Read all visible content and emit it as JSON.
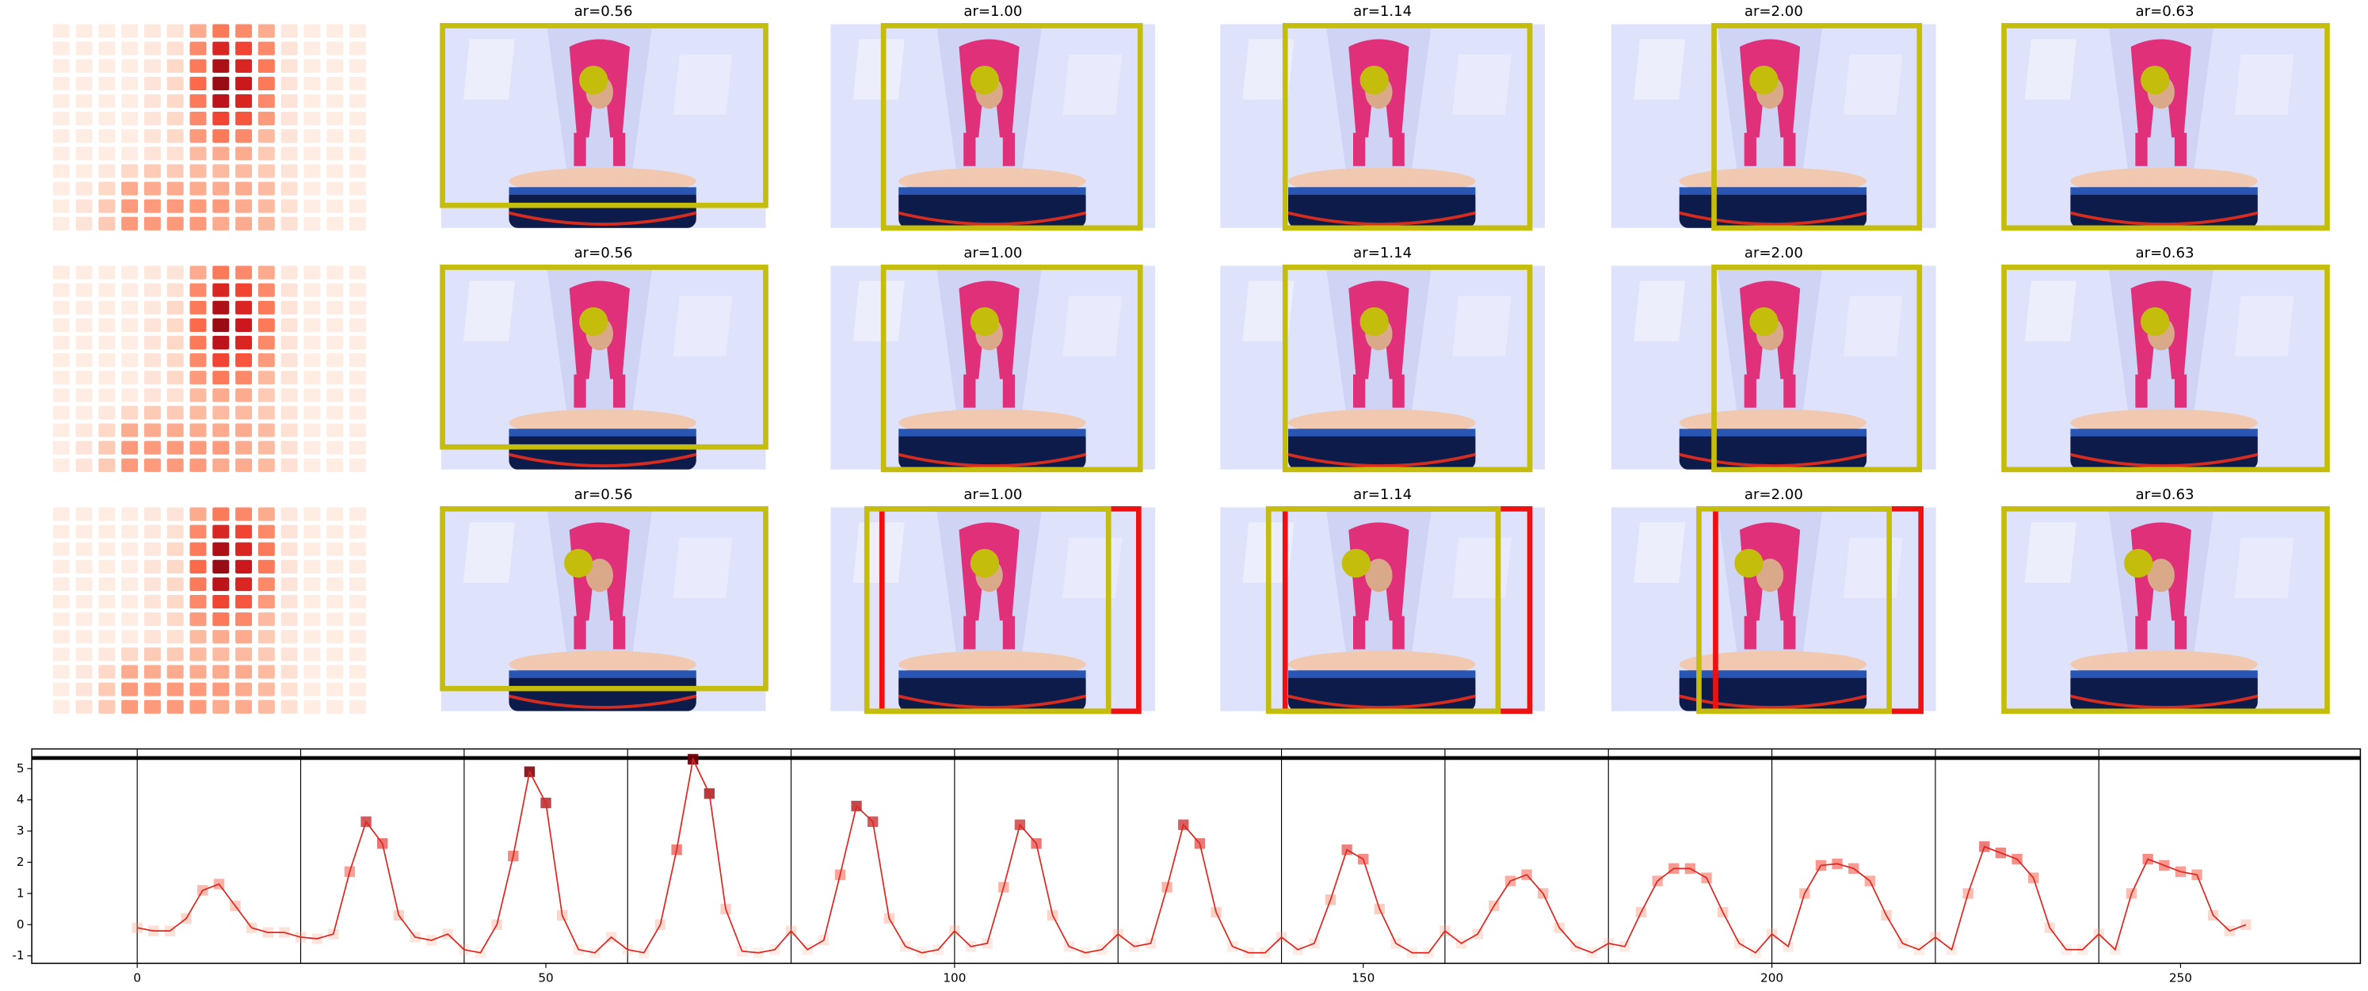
{
  "panel_titles": [
    "ar=0.56",
    "ar=1.00",
    "ar=1.14",
    "ar=2.00",
    "ar=0.63"
  ],
  "heatmap": {
    "values": [
      [
        0.05,
        0.05,
        0.05,
        0.05,
        0.08,
        0.1,
        0.3,
        0.45,
        0.4,
        0.3,
        0.08,
        0.05,
        0.05,
        0.05
      ],
      [
        0.05,
        0.05,
        0.05,
        0.05,
        0.08,
        0.12,
        0.4,
        0.7,
        0.6,
        0.4,
        0.1,
        0.05,
        0.05,
        0.05
      ],
      [
        0.05,
        0.05,
        0.05,
        0.05,
        0.08,
        0.15,
        0.45,
        0.85,
        0.7,
        0.45,
        0.1,
        0.05,
        0.05,
        0.05
      ],
      [
        0.05,
        0.05,
        0.05,
        0.05,
        0.1,
        0.15,
        0.5,
        0.9,
        0.75,
        0.45,
        0.1,
        0.05,
        0.05,
        0.05
      ],
      [
        0.05,
        0.05,
        0.05,
        0.05,
        0.1,
        0.15,
        0.45,
        0.8,
        0.7,
        0.4,
        0.1,
        0.05,
        0.05,
        0.05
      ],
      [
        0.05,
        0.05,
        0.05,
        0.05,
        0.1,
        0.15,
        0.4,
        0.6,
        0.55,
        0.35,
        0.1,
        0.05,
        0.05,
        0.05
      ],
      [
        0.05,
        0.05,
        0.05,
        0.05,
        0.1,
        0.15,
        0.35,
        0.45,
        0.4,
        0.25,
        0.1,
        0.05,
        0.05,
        0.05
      ],
      [
        0.05,
        0.05,
        0.05,
        0.05,
        0.1,
        0.12,
        0.25,
        0.3,
        0.3,
        0.2,
        0.08,
        0.05,
        0.05,
        0.05
      ],
      [
        0.05,
        0.05,
        0.08,
        0.15,
        0.2,
        0.2,
        0.25,
        0.25,
        0.25,
        0.2,
        0.1,
        0.05,
        0.05,
        0.05
      ],
      [
        0.05,
        0.08,
        0.15,
        0.3,
        0.3,
        0.3,
        0.3,
        0.3,
        0.3,
        0.25,
        0.12,
        0.05,
        0.05,
        0.05
      ],
      [
        0.05,
        0.1,
        0.2,
        0.35,
        0.35,
        0.35,
        0.35,
        0.35,
        0.3,
        0.25,
        0.12,
        0.05,
        0.05,
        0.05
      ],
      [
        0.05,
        0.1,
        0.2,
        0.35,
        0.35,
        0.35,
        0.35,
        0.3,
        0.3,
        0.25,
        0.12,
        0.05,
        0.05,
        0.05
      ]
    ]
  },
  "chart_data": {
    "type": "line",
    "x": [
      0,
      2,
      4,
      6,
      8,
      10,
      12,
      14,
      16,
      18,
      20,
      22,
      24,
      26,
      28,
      30,
      32,
      34,
      36,
      38,
      40,
      42,
      44,
      46,
      48,
      50,
      52,
      54,
      56,
      58,
      60,
      62,
      64,
      66,
      68,
      70,
      72,
      74,
      76,
      78,
      80,
      82,
      84,
      86,
      88,
      90,
      92,
      94,
      96,
      98,
      100,
      102,
      104,
      106,
      108,
      110,
      112,
      114,
      116,
      118,
      120,
      122,
      124,
      126,
      128,
      130,
      132,
      134,
      136,
      138,
      140,
      142,
      144,
      146,
      148,
      150,
      152,
      154,
      156,
      158,
      160,
      162,
      164,
      166,
      168,
      170,
      172,
      174,
      176,
      178,
      180,
      182,
      184,
      186,
      188,
      190,
      192,
      194,
      196,
      198,
      200,
      202,
      204,
      206,
      208,
      210,
      212,
      214,
      216,
      218,
      220,
      222,
      224,
      226,
      228,
      230,
      232,
      234,
      236,
      238,
      240,
      242,
      244,
      246,
      248,
      250,
      252,
      254,
      256,
      258
    ],
    "series": [
      {
        "color": "#e0261f",
        "values": [
          -0.1,
          -0.2,
          -0.2,
          0.2,
          1.1,
          1.3,
          0.6,
          -0.1,
          -0.25,
          -0.25,
          -0.4,
          -0.45,
          -0.3,
          1.7,
          3.3,
          2.6,
          0.3,
          -0.4,
          -0.5,
          -0.3,
          -0.8,
          -0.9,
          0.0,
          2.2,
          4.9,
          3.9,
          0.3,
          -0.8,
          -0.9,
          -0.4,
          -0.8,
          -0.9,
          0.0,
          2.4,
          5.3,
          4.2,
          0.5,
          -0.85,
          -0.9,
          -0.8,
          -0.2,
          -0.8,
          -0.5,
          1.6,
          3.8,
          3.3,
          0.2,
          -0.7,
          -0.9,
          -0.8,
          -0.2,
          -0.7,
          -0.6,
          1.2,
          3.2,
          2.6,
          0.3,
          -0.7,
          -0.9,
          -0.8,
          -0.3,
          -0.7,
          -0.6,
          1.2,
          3.2,
          2.6,
          0.4,
          -0.7,
          -0.9,
          -0.9,
          -0.4,
          -0.8,
          -0.6,
          0.8,
          2.4,
          2.1,
          0.5,
          -0.6,
          -0.9,
          -0.9,
          -0.2,
          -0.6,
          -0.3,
          0.6,
          1.4,
          1.6,
          1.0,
          -0.1,
          -0.7,
          -0.9,
          -0.6,
          -0.7,
          0.4,
          1.4,
          1.8,
          1.8,
          1.5,
          0.4,
          -0.6,
          -0.9,
          -0.3,
          -0.7,
          1.0,
          1.9,
          1.95,
          1.8,
          1.4,
          0.3,
          -0.6,
          -0.8,
          -0.4,
          -0.8,
          1.0,
          2.5,
          2.3,
          2.1,
          1.5,
          -0.1,
          -0.8,
          -0.8,
          -0.3,
          -0.8,
          1.0,
          2.1,
          1.9,
          1.7,
          1.6,
          0.3,
          -0.2,
          0.0
        ]
      }
    ],
    "xlim": [
      -12.9,
      272
    ],
    "ylim": [
      -1.24,
      5.63
    ],
    "xticks": [
      0,
      50,
      100,
      150,
      200,
      250
    ],
    "yticks": [
      -1,
      0,
      1,
      2,
      3,
      4,
      5
    ],
    "vlines": [
      0,
      20,
      40,
      60,
      80,
      100,
      120,
      140,
      160,
      180,
      200,
      220,
      240
    ],
    "hline": 5.34,
    "grid": false
  }
}
